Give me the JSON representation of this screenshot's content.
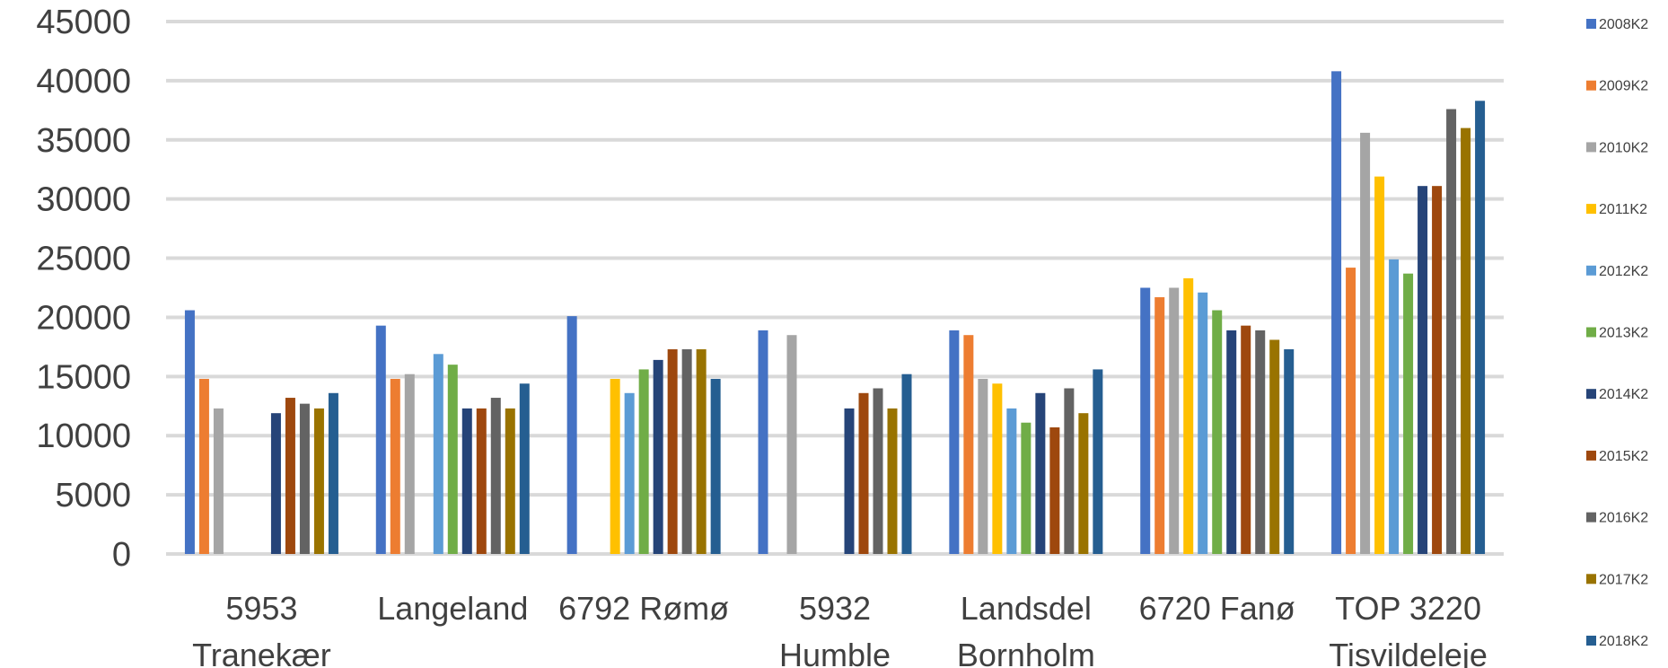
{
  "chart_data": {
    "type": "bar",
    "title": "",
    "xlabel": "",
    "ylabel": "",
    "ylim": [
      0,
      45000
    ],
    "yticks": [
      "0",
      "5000",
      "10000",
      "15000",
      "20000",
      "25000",
      "30000",
      "35000",
      "40000",
      "45000"
    ],
    "grid": true,
    "legend_position": "right",
    "categories": [
      [
        "5953",
        "Tranekær"
      ],
      [
        "Langeland"
      ],
      [
        "6792 Rømø"
      ],
      [
        "5932",
        "Humble"
      ],
      [
        "Landsdel",
        "Bornholm"
      ],
      [
        "6720 Fanø"
      ],
      [
        "TOP 3220",
        "Tisvildeleje"
      ]
    ],
    "series": [
      {
        "name": "2008K2",
        "color": "#4472C4",
        "values": [
          20600,
          19300,
          20100,
          18900,
          18900,
          22500,
          40800
        ]
      },
      {
        "name": "2009K2",
        "color": "#ED7D31",
        "values": [
          14800,
          14800,
          null,
          null,
          18500,
          21700,
          24200
        ]
      },
      {
        "name": "2010K2",
        "color": "#A5A5A5",
        "values": [
          12300,
          15200,
          null,
          18500,
          14800,
          22500,
          35600
        ]
      },
      {
        "name": "2011K2",
        "color": "#FFC000",
        "values": [
          null,
          null,
          14800,
          null,
          14400,
          23300,
          31900
        ]
      },
      {
        "name": "2012K2",
        "color": "#5B9BD5",
        "values": [
          null,
          16900,
          13600,
          null,
          12300,
          22100,
          24900
        ]
      },
      {
        "name": "2013K2",
        "color": "#70AD47",
        "values": [
          null,
          16000,
          15600,
          null,
          11100,
          20600,
          23700
        ]
      },
      {
        "name": "2014K2",
        "color": "#264478",
        "values": [
          11900,
          12300,
          16400,
          12300,
          13600,
          18900,
          31100
        ]
      },
      {
        "name": "2015K2",
        "color": "#9E480E",
        "values": [
          13200,
          12300,
          17300,
          13600,
          10700,
          19300,
          31100
        ]
      },
      {
        "name": "2016K2",
        "color": "#636363",
        "values": [
          12700,
          13200,
          17300,
          14000,
          14000,
          18900,
          37600
        ]
      },
      {
        "name": "2017K2",
        "color": "#997300",
        "values": [
          12300,
          12300,
          17300,
          12300,
          11900,
          18100,
          36000
        ]
      },
      {
        "name": "2018K2",
        "color": "#255E91",
        "values": [
          13600,
          14400,
          14800,
          15200,
          15600,
          17300,
          38300
        ]
      }
    ]
  }
}
